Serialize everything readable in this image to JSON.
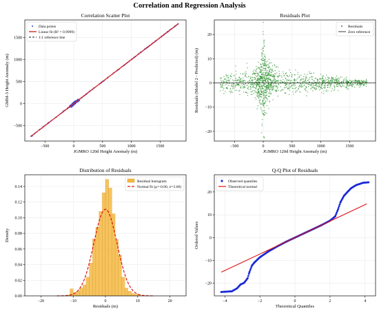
{
  "figure": {
    "title": "Correlation and Regression Analysis"
  },
  "chart_data": [
    {
      "type": "scatter",
      "title": "Correlation Scatter Plot",
      "xlabel": "JGMRO 120d Height Anomaly (m)",
      "ylabel": "GMM-3 Height Anomaly (m)",
      "xlim": [
        -850,
        1950
      ],
      "ylim": [
        -850,
        1900
      ],
      "xticks": [
        -500,
        0,
        500,
        1000,
        1500
      ],
      "yticks": [
        -500,
        0,
        500,
        1000,
        1500
      ],
      "grid": true,
      "legend": {
        "position": "top-left",
        "entries": [
          "Data points",
          "Linear fit (R² = 0.9999)",
          "1:1 reference line"
        ]
      },
      "data_range": {
        "x": [
          -750,
          1820
        ],
        "y": [
          -750,
          1820
        ]
      },
      "fit": {
        "slope": 1.0,
        "intercept": 0.0,
        "r2": 0.9999
      },
      "colors": {
        "points": "#3b3bd6",
        "fit": "#d62728",
        "reference": "#444444"
      }
    },
    {
      "type": "scatter",
      "title": "Residuals Plot",
      "xlabel": "JGMRO 120d Height Anomaly (m)",
      "ylabel": "Residuals (Model 2 - Predicted) (m)",
      "xlim": [
        -850,
        1950
      ],
      "ylim": [
        -24,
        26
      ],
      "xticks": [
        -500,
        0,
        500,
        1000,
        1500
      ],
      "yticks": [
        -20,
        -10,
        0,
        10,
        20
      ],
      "grid": true,
      "legend": {
        "position": "top-right",
        "entries": [
          "Residuals",
          "Zero reference"
        ]
      },
      "residual_envelope": {
        "x": [
          -750,
          -500,
          -200,
          -50,
          0,
          50,
          200,
          500,
          800,
          1000,
          1200,
          1500,
          1800
        ],
        "half_width": [
          4,
          5,
          6,
          9,
          24,
          10,
          7,
          5,
          4,
          3.5,
          3,
          2,
          1.5
        ]
      },
      "colors": {
        "points": "#228b22",
        "zero": "#222222"
      }
    },
    {
      "type": "bar",
      "title": "Distribution of Residuals",
      "xlabel": "Residuals (m)",
      "ylabel": "Density",
      "xlim": [
        -25,
        25
      ],
      "ylim": [
        0,
        0.155
      ],
      "xticks": [
        -20,
        -10,
        0,
        10,
        20
      ],
      "yticks": [
        0.0,
        0.02,
        0.04,
        0.06,
        0.08,
        0.1,
        0.12,
        0.14
      ],
      "grid": true,
      "legend": {
        "position": "top-right",
        "entries": [
          "Residual histogram",
          "Normal fit (μ=-0.00, σ=3.60)"
        ]
      },
      "normal_fit": {
        "mu": -0.0,
        "sigma": 3.6
      },
      "bin_edges_start": -12,
      "bin_width": 1,
      "densities": [
        0.001,
        0.009,
        0.004,
        0.006,
        0.01,
        0.014,
        0.024,
        0.042,
        0.073,
        0.088,
        0.108,
        0.132,
        0.149,
        0.138,
        0.105,
        0.072,
        0.052,
        0.024,
        0.01,
        0.006,
        0.003,
        0.002,
        0.001
      ],
      "colors": {
        "bars": "#f5b942",
        "edge": "#c88a10",
        "fit": "#e01010"
      }
    },
    {
      "type": "scatter",
      "title": "Q-Q Plot of Residuals",
      "xlabel": "Theoretical Quantiles",
      "ylabel": "Ordered Values",
      "xlim": [
        -4.6,
        4.6
      ],
      "ylim": [
        -25.5,
        27.5
      ],
      "xticks": [
        -4,
        -2,
        0,
        2,
        4
      ],
      "yticks": [
        -20,
        -10,
        0,
        10,
        20
      ],
      "grid": true,
      "legend": {
        "position": "top-left",
        "entries": [
          "Observed quantiles",
          "Theoretical normal"
        ]
      },
      "observed": {
        "x": [
          -4.2,
          -3.6,
          -3.3,
          -3.1,
          -2.9,
          -2.7,
          -2.6,
          -2.45,
          -2.3,
          -2.0,
          -1.5,
          -1.0,
          -0.5,
          0,
          0.5,
          1.0,
          1.5,
          2.0,
          2.3,
          2.45,
          2.6,
          2.8,
          3.0,
          3.2,
          3.5,
          3.9,
          4.2
        ],
        "y": [
          -23.8,
          -23.5,
          -22.2,
          -20.5,
          -19.8,
          -17.8,
          -15.2,
          -12.2,
          -10.8,
          -8.6,
          -6.0,
          -3.8,
          -1.8,
          0.0,
          1.8,
          3.6,
          5.4,
          7.4,
          9.3,
          12.2,
          15.5,
          18.3,
          20.0,
          21.6,
          23.0,
          24.0,
          24.2
        ]
      },
      "theoretical_line": {
        "slope": 3.6,
        "intercept": 0.0
      },
      "colors": {
        "points": "#1a2bd6",
        "line": "#e01010"
      }
    }
  ]
}
